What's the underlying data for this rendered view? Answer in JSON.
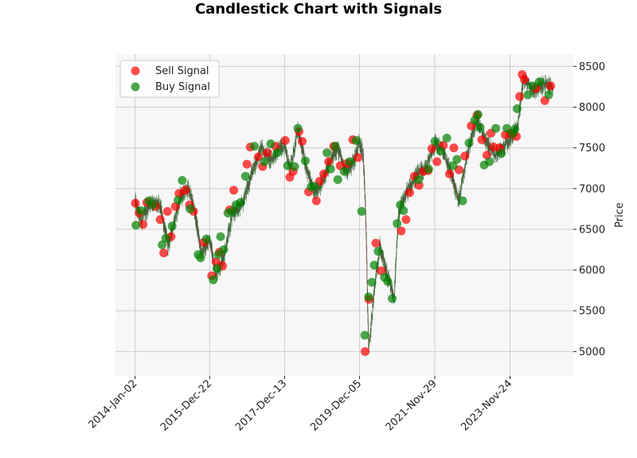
{
  "chart_data": {
    "type": "candlestick",
    "title": "Candlestick Chart with Signals",
    "xlabel": "",
    "ylabel": "Price",
    "x_tick_labels": [
      "2014-Jan-02",
      "2015-Dec-22",
      "2017-Dec-13",
      "2019-Dec-05",
      "2021-Nov-29",
      "2023-Nov-24"
    ],
    "xlim": [
      "2013-06-27",
      "2025-07-26"
    ],
    "y_ticks": [
      5000,
      5500,
      6000,
      6500,
      7000,
      7500,
      8000,
      8500
    ],
    "ylim": [
      4700,
      8650
    ],
    "grid": true,
    "legend": {
      "placement": "top-left",
      "entries": [
        {
          "name": "Sell Signal",
          "color": "#ff0000"
        },
        {
          "name": "Buy Signal",
          "color": "#008000"
        }
      ]
    },
    "colors": {
      "sell": "#ff0000",
      "buy": "#008000",
      "candle": "#2e5e2e",
      "plot_bg": "#f7f7f7",
      "grid": "#cccccc"
    },
    "price_path": [
      [
        "2014-01-02",
        6830
      ],
      [
        "2014-03-01",
        6600
      ],
      [
        "2014-06-01",
        6850
      ],
      [
        "2014-09-01",
        6780
      ],
      [
        "2014-11-15",
        6300
      ],
      [
        "2015-01-15",
        6600
      ],
      [
        "2015-03-15",
        6900
      ],
      [
        "2015-06-01",
        7000
      ],
      [
        "2015-08-01",
        6700
      ],
      [
        "2015-10-01",
        6200
      ],
      [
        "2015-12-22",
        6380
      ],
      [
        "2016-02-15",
        5950
      ],
      [
        "2016-05-01",
        6150
      ],
      [
        "2016-08-01",
        6700
      ],
      [
        "2016-11-01",
        6800
      ],
      [
        "2017-02-01",
        7200
      ],
      [
        "2017-05-01",
        7500
      ],
      [
        "2017-08-01",
        7350
      ],
      [
        "2017-11-01",
        7500
      ],
      [
        "2017-12-13",
        7520
      ],
      [
        "2018-02-01",
        7250
      ],
      [
        "2018-04-20",
        7700
      ],
      [
        "2018-07-01",
        7300
      ],
      [
        "2018-09-15",
        6950
      ],
      [
        "2018-12-01",
        7050
      ],
      [
        "2019-02-15",
        7300
      ],
      [
        "2019-05-01",
        7500
      ],
      [
        "2019-08-01",
        7200
      ],
      [
        "2019-10-15",
        7350
      ],
      [
        "2019-12-05",
        7600
      ],
      [
        "2020-01-10",
        7380
      ],
      [
        "2020-02-01",
        6700
      ],
      [
        "2020-03-01",
        5000
      ],
      [
        "2020-04-20",
        5700
      ],
      [
        "2020-06-15",
        6300
      ],
      [
        "2020-09-01",
        5900
      ],
      [
        "2020-11-01",
        5650
      ],
      [
        "2020-12-15",
        6700
      ],
      [
        "2021-03-01",
        6950
      ],
      [
        "2021-06-01",
        7150
      ],
      [
        "2021-09-01",
        7250
      ],
      [
        "2021-11-29",
        7550
      ],
      [
        "2022-02-01",
        7500
      ],
      [
        "2022-05-01",
        7200
      ],
      [
        "2022-07-15",
        6850
      ],
      [
        "2022-10-01",
        7400
      ],
      [
        "2023-01-01",
        7850
      ],
      [
        "2023-04-01",
        7600
      ],
      [
        "2023-07-01",
        7400
      ],
      [
        "2023-11-24",
        7600
      ],
      [
        "2024-02-01",
        7750
      ],
      [
        "2024-04-01",
        8350
      ],
      [
        "2024-07-01",
        8200
      ],
      [
        "2024-10-15",
        8280
      ],
      [
        "2025-01-10",
        8250
      ]
    ],
    "sell_signals": [
      [
        "2014-01-05",
        6820
      ],
      [
        "2014-02-10",
        6700
      ],
      [
        "2014-03-20",
        6560
      ],
      [
        "2014-04-25",
        6830
      ],
      [
        "2014-07-15",
        6780
      ],
      [
        "2014-09-01",
        6620
      ],
      [
        "2014-10-05",
        6210
      ],
      [
        "2014-11-10",
        6720
      ],
      [
        "2014-12-15",
        6410
      ],
      [
        "2015-01-25",
        6780
      ],
      [
        "2015-03-01",
        6940
      ],
      [
        "2015-05-01",
        6980
      ],
      [
        "2015-06-10",
        6800
      ],
      [
        "2015-07-20",
        6720
      ],
      [
        "2015-10-25",
        6340
      ],
      [
        "2016-01-10",
        5930
      ],
      [
        "2016-02-20",
        6100
      ],
      [
        "2016-03-25",
        6220
      ],
      [
        "2016-04-25",
        6050
      ],
      [
        "2016-07-01",
        6740
      ],
      [
        "2016-08-10",
        6980
      ],
      [
        "2016-12-15",
        7300
      ],
      [
        "2017-01-15",
        7510
      ],
      [
        "2017-04-05",
        7390
      ],
      [
        "2017-05-15",
        7270
      ],
      [
        "2017-07-01",
        7440
      ],
      [
        "2017-09-15",
        7520
      ],
      [
        "2017-12-20",
        7590
      ],
      [
        "2018-02-01",
        7140
      ],
      [
        "2018-03-05",
        7210
      ],
      [
        "2018-05-01",
        7700
      ],
      [
        "2018-06-01",
        7580
      ],
      [
        "2018-08-01",
        6960
      ],
      [
        "2018-10-15",
        6850
      ],
      [
        "2018-11-15",
        7090
      ],
      [
        "2018-12-25",
        7180
      ],
      [
        "2019-02-10",
        7330
      ],
      [
        "2019-04-01",
        7520
      ],
      [
        "2019-06-01",
        7280
      ],
      [
        "2019-08-10",
        7310
      ],
      [
        "2019-10-01",
        7600
      ],
      [
        "2019-11-20",
        7380
      ],
      [
        "2020-01-28",
        5000
      ],
      [
        "2020-03-05",
        5640
      ],
      [
        "2020-05-10",
        6330
      ],
      [
        "2020-07-01",
        5990
      ],
      [
        "2021-01-10",
        6480
      ],
      [
        "2021-02-25",
        6620
      ],
      [
        "2021-04-01",
        6950
      ],
      [
        "2021-05-15",
        7150
      ],
      [
        "2021-07-01",
        7040
      ],
      [
        "2021-08-10",
        7210
      ],
      [
        "2021-09-25",
        7220
      ],
      [
        "2021-11-01",
        7490
      ],
      [
        "2021-12-20",
        7330
      ],
      [
        "2022-02-20",
        7530
      ],
      [
        "2022-04-20",
        7180
      ],
      [
        "2022-06-01",
        7500
      ],
      [
        "2022-07-20",
        7230
      ],
      [
        "2022-09-15",
        7400
      ],
      [
        "2022-11-15",
        7770
      ],
      [
        "2023-01-10",
        7900
      ],
      [
        "2023-02-25",
        7600
      ],
      [
        "2023-04-15",
        7410
      ],
      [
        "2023-05-25",
        7680
      ],
      [
        "2023-06-20",
        7510
      ],
      [
        "2023-08-15",
        7500
      ],
      [
        "2023-10-10",
        7660
      ],
      [
        "2023-11-25",
        7680
      ],
      [
        "2024-01-25",
        7640
      ],
      [
        "2024-02-25",
        8130
      ],
      [
        "2024-03-20",
        8400
      ],
      [
        "2024-04-10",
        8340
      ],
      [
        "2024-08-01",
        8230
      ],
      [
        "2024-10-25",
        8080
      ],
      [
        "2024-12-20",
        8260
      ]
    ],
    "buy_signals": [
      [
        "2014-01-10",
        6550
      ],
      [
        "2014-02-25",
        6730
      ],
      [
        "2014-05-15",
        6850
      ],
      [
        "2014-06-20",
        6800
      ],
      [
        "2014-09-20",
        6310
      ],
      [
        "2014-10-25",
        6390
      ],
      [
        "2014-12-25",
        6540
      ],
      [
        "2015-02-20",
        6860
      ],
      [
        "2015-04-01",
        7100
      ],
      [
        "2015-06-15",
        6750
      ],
      [
        "2015-09-01",
        6190
      ],
      [
        "2015-09-25",
        6150
      ],
      [
        "2015-11-20",
        6380
      ],
      [
        "2016-01-25",
        5880
      ],
      [
        "2016-03-01",
        6020
      ],
      [
        "2016-03-15",
        6190
      ],
      [
        "2016-04-05",
        6410
      ],
      [
        "2016-05-05",
        6250
      ],
      [
        "2016-06-15",
        6700
      ],
      [
        "2016-07-25",
        6720
      ],
      [
        "2016-09-01",
        6800
      ],
      [
        "2016-10-15",
        6830
      ],
      [
        "2016-12-01",
        7150
      ],
      [
        "2017-02-25",
        7520
      ],
      [
        "2017-06-01",
        7330
      ],
      [
        "2017-08-01",
        7550
      ],
      [
        "2017-10-01",
        7440
      ],
      [
        "2018-01-10",
        7280
      ],
      [
        "2018-03-20",
        7270
      ],
      [
        "2018-04-20",
        7740
      ],
      [
        "2018-07-01",
        7340
      ],
      [
        "2018-08-25",
        7020
      ],
      [
        "2018-09-25",
        7030
      ],
      [
        "2019-01-25",
        7440
      ],
      [
        "2019-03-01",
        7240
      ],
      [
        "2019-04-15",
        7520
      ],
      [
        "2019-05-10",
        7110
      ],
      [
        "2019-07-10",
        7210
      ],
      [
        "2019-09-01",
        7330
      ],
      [
        "2019-11-01",
        7590
      ],
      [
        "2019-12-25",
        6720
      ],
      [
        "2020-01-25",
        5200
      ],
      [
        "2020-03-01",
        5670
      ],
      [
        "2020-04-01",
        5850
      ],
      [
        "2020-04-25",
        6060
      ],
      [
        "2020-06-01",
        6230
      ],
      [
        "2020-08-01",
        5910
      ],
      [
        "2020-09-01",
        5860
      ],
      [
        "2020-10-15",
        5650
      ],
      [
        "2020-12-01",
        6570
      ],
      [
        "2021-01-01",
        6800
      ],
      [
        "2021-02-01",
        6730
      ],
      [
        "2021-06-25",
        7110
      ],
      [
        "2021-10-01",
        7240
      ],
      [
        "2021-12-01",
        7580
      ],
      [
        "2022-01-25",
        7460
      ],
      [
        "2022-03-25",
        7620
      ],
      [
        "2022-05-25",
        7280
      ],
      [
        "2022-07-01",
        7360
      ],
      [
        "2022-08-25",
        6850
      ],
      [
        "2022-10-25",
        7560
      ],
      [
        "2022-12-20",
        7840
      ],
      [
        "2023-01-20",
        7910
      ],
      [
        "2023-02-10",
        7750
      ],
      [
        "2023-03-20",
        7290
      ],
      [
        "2023-05-10",
        7330
      ],
      [
        "2023-07-10",
        7740
      ],
      [
        "2023-09-01",
        7430
      ],
      [
        "2023-10-25",
        7740
      ],
      [
        "2023-12-20",
        7680
      ],
      [
        "2024-01-10",
        7730
      ],
      [
        "2024-02-01",
        7980
      ],
      [
        "2024-05-15",
        8150
      ],
      [
        "2024-07-01",
        8260
      ],
      [
        "2024-09-01",
        8310
      ],
      [
        "2024-12-01",
        8150
      ]
    ]
  }
}
